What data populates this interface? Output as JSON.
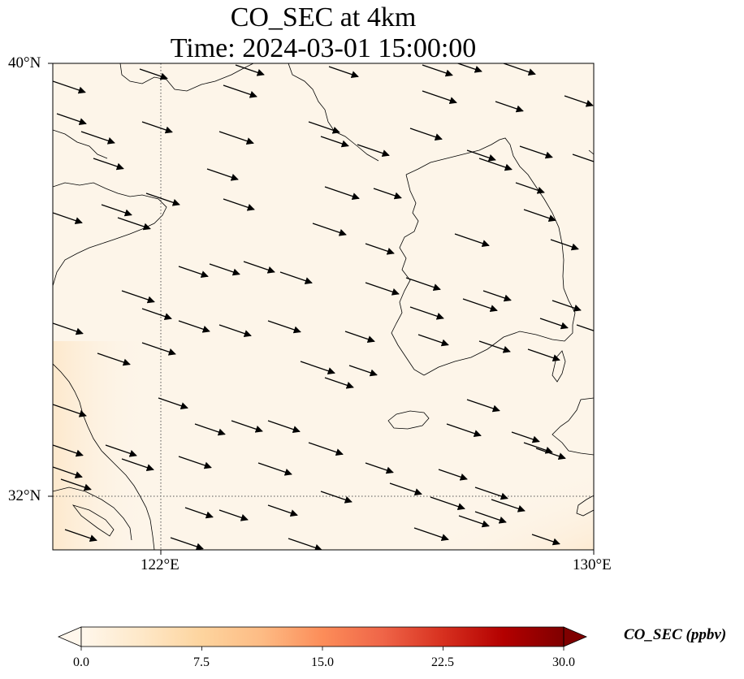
{
  "title": {
    "line1": "CO_SEC at 4km",
    "line2": "Time: 2024-03-01 15:00:00"
  },
  "map": {
    "projection": "lat-lon",
    "lon_range": [
      119,
      130
    ],
    "lat_range": [
      31,
      40
    ],
    "background_color": "#fdf5e9",
    "coastline_color": "#000000",
    "gridlines": {
      "lon": [
        122,
        130
      ],
      "lat": [
        32,
        40
      ],
      "style": "dotted"
    },
    "lat_ticks": [
      {
        "value": 40,
        "label": "40°N"
      },
      {
        "value": 32,
        "label": "32°N"
      }
    ],
    "lon_ticks": [
      {
        "value": 122,
        "label": "122°E"
      },
      {
        "value": 130,
        "label": "130°E"
      }
    ],
    "wind_vectors": {
      "color": "#000000",
      "direction": "east-southeast",
      "note_visible": false
    },
    "high_concentration_region": "southeast corner"
  },
  "colorbar": {
    "label": "CO_SEC (ppbv)",
    "colormap": "OrRd",
    "range": [
      0,
      30
    ],
    "extend": "both",
    "ticks": [
      {
        "value": 0,
        "label": "0.0"
      },
      {
        "value": 7.5,
        "label": "7.5"
      },
      {
        "value": 15,
        "label": "15.0"
      },
      {
        "value": 22.5,
        "label": "22.5"
      },
      {
        "value": 30,
        "label": "30.0"
      }
    ]
  }
}
